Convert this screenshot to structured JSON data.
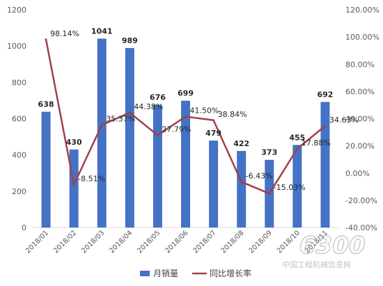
{
  "chart_data": {
    "type": "bar",
    "categories": [
      "2018/01",
      "2018/02",
      "2018/03",
      "2018/04",
      "2018/05",
      "2018/06",
      "2018/07",
      "2018/08",
      "2018/09",
      "2018/10",
      "2018/11"
    ],
    "series": [
      {
        "name": "月销量",
        "type": "bar",
        "axis": "left",
        "color": "#4472C4",
        "values": [
          638,
          430,
          1041,
          989,
          676,
          699,
          479,
          422,
          373,
          455,
          692
        ],
        "labels": [
          "638",
          "430",
          "1041",
          "989",
          "676",
          "699",
          "479",
          "422",
          "373",
          "455",
          "692"
        ]
      },
      {
        "name": "同比增长率",
        "type": "line",
        "axis": "right",
        "color": "#A0404A",
        "values": [
          98.14,
          -8.51,
          35.37,
          44.38,
          27.79,
          41.5,
          38.84,
          -6.43,
          -15.03,
          17.88,
          34.63
        ],
        "labels": [
          "98.14%",
          "-8.51%",
          "35.37%",
          "44.38%",
          "27.79%",
          "41.50%",
          "38.84%",
          "-6.43%",
          "-15.03%",
          "17.88%",
          "34.63%"
        ]
      }
    ],
    "ylim_left": [
      0,
      1200
    ],
    "yticks_left": [
      "0",
      "200",
      "400",
      "600",
      "800",
      "1000",
      "1200"
    ],
    "ylim_right": [
      -40,
      120
    ],
    "yticks_right": [
      "-40.00%",
      "-20.00%",
      "0.00%",
      "20.00%",
      "40.00%",
      "60.00%",
      "80.00%",
      "100.00%",
      "120.00%"
    ],
    "grid": false,
    "legend_position": "bottom"
  },
  "watermark": {
    "logo_text": "6300",
    "site_name": "中国工程机械信息网"
  }
}
